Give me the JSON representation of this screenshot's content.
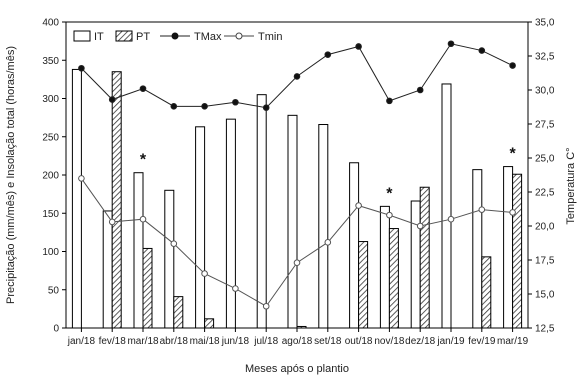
{
  "chart_data": {
    "type": "bar",
    "categories": [
      "jan/18",
      "fev/18",
      "mar/18",
      "abr/18",
      "mai/18",
      "jun/18",
      "jul/18",
      "ago/18",
      "set/18",
      "out/18",
      "nov/18",
      "dez/18",
      "jan/19",
      "fev/19",
      "mar/19"
    ],
    "xlabel": "Meses após o plantio",
    "ylabel": "Precipitação (mm/mês) e Insolação total (horas/mês)",
    "y2label": "Temperatura C°",
    "ylim": [
      0,
      400
    ],
    "y2lim": [
      12.5,
      35.0
    ],
    "yticks": [
      "0",
      "50",
      "100",
      "150",
      "200",
      "250",
      "300",
      "350",
      "400"
    ],
    "y2ticks": [
      "12,5",
      "15,0",
      "17,5",
      "20,0",
      "22,5",
      "25,0",
      "27,5",
      "30,0",
      "32,5",
      "35,0"
    ],
    "series": [
      {
        "name": "IT",
        "kind": "bar",
        "pattern": "open",
        "values": [
          338,
          153,
          203,
          180,
          263,
          273,
          305,
          278,
          266,
          216,
          159,
          166,
          319,
          207,
          211
        ]
      },
      {
        "name": "PT",
        "kind": "bar",
        "pattern": "hatched",
        "values": [
          0,
          335,
          104,
          41,
          12,
          0,
          0,
          2,
          0,
          113,
          130,
          184,
          0,
          93,
          201
        ]
      },
      {
        "name": "TMax",
        "kind": "line",
        "axis": "right",
        "marker": "filled-circle",
        "values": [
          31.6,
          29.3,
          30.1,
          28.8,
          28.8,
          29.1,
          28.7,
          31.0,
          32.6,
          33.2,
          29.2,
          30.0,
          33.4,
          32.9,
          31.8
        ]
      },
      {
        "name": "Tmin",
        "kind": "line",
        "axis": "right",
        "marker": "open-circle",
        "values": [
          23.5,
          20.3,
          20.5,
          18.7,
          16.5,
          15.4,
          14.1,
          17.3,
          18.8,
          21.5,
          20.8,
          20.0,
          20.5,
          21.2,
          21.0
        ]
      }
    ],
    "annotations": [
      {
        "text": "*",
        "category": "mar/18"
      },
      {
        "text": "*",
        "category": "nov/18"
      },
      {
        "text": "*",
        "category": "mar/19"
      }
    ],
    "legend_position": "top-left",
    "grid": false
  }
}
